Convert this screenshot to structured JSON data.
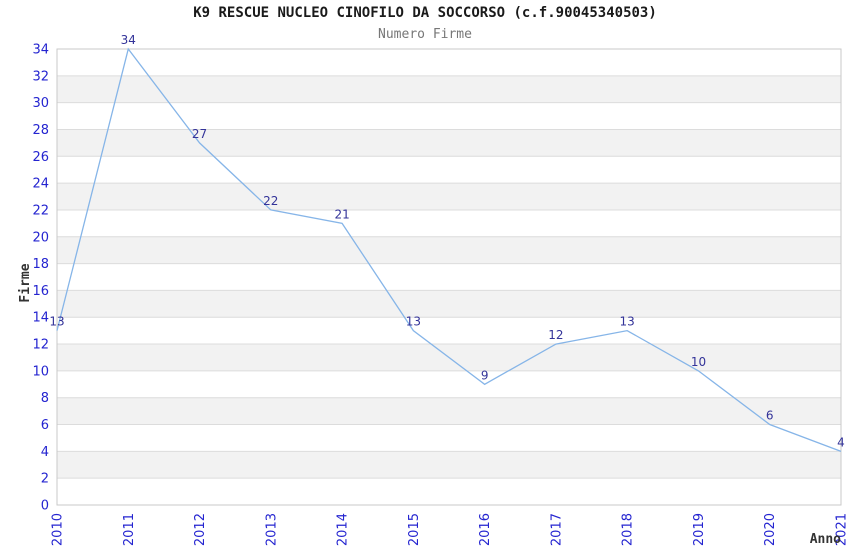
{
  "chart_data": {
    "type": "line",
    "title": "K9 RESCUE NUCLEO CINOFILO DA SOCCORSO (c.f.90045340503)",
    "subtitle": "Numero Firme",
    "x": [
      "2010",
      "2011",
      "2012",
      "2013",
      "2014",
      "2015",
      "2016",
      "2017",
      "2018",
      "2019",
      "2020",
      "2021"
    ],
    "values": [
      13,
      34,
      27,
      22,
      21,
      13,
      9,
      12,
      13,
      10,
      6,
      4
    ],
    "xlabel": "Anno",
    "ylabel": "Firme",
    "ylim": [
      0,
      34
    ],
    "ytick_step": 2,
    "grid": true,
    "banded_rows": true,
    "legend": "none",
    "data_labels_visible": true,
    "colors": {
      "line": "#86b5e8",
      "tick_label": "#2424d0",
      "data_label": "#333399",
      "band": "#f2f2f2",
      "grid": "#dcdcdc",
      "border": "#c9c9c9",
      "title": "#1a1a1a",
      "subtitle": "#777777",
      "axis_title": "#333333"
    }
  }
}
